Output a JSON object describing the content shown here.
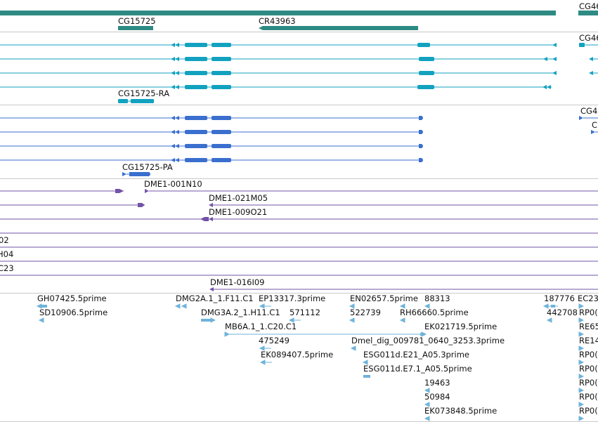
{
  "track_gene_span": {
    "labels": {
      "cg46_top": "CG46",
      "cg15725": "CG15725",
      "cr43963": "CR43963"
    }
  },
  "track_transcripts": {
    "labels": {
      "cg46": "CG46",
      "cg15725_ra": "CG15725-RA"
    }
  },
  "track_proteins": {
    "labels": {
      "cg4_a": "CG4",
      "cg4_b": "C",
      "cg15725_pa": "CG15725-PA"
    }
  },
  "track_bac_clones": {
    "labels": {
      "dme1_001n10": "DME1-001N10",
      "dme1_021m05": "DME1-021M05",
      "dme1_009o21": "DME1-009O21",
      "cut_02": "02",
      "cut_h04": "H04",
      "cut_c23": "C23",
      "dme1_016i09": "DME1-016I09"
    }
  },
  "track_ests": {
    "labels": {
      "gh07425": "GH07425.5prime",
      "sd10906": "SD10906.5prime",
      "dmg2a": "DMG2A.1_1.F11.C1",
      "ep13317": "EP13317.3prime",
      "en02657": "EN02657.5prime",
      "e88313": "88313",
      "e187776": "187776",
      "ec23": "EC23",
      "dmg3a": "DMG3A.2_1.H11.C1",
      "e571112": "571112",
      "e522739": "522739",
      "rh66660": "RH66660.5prime",
      "e442708": "442708",
      "rp0_1": "RP0(",
      "mb6a": "MB6A.1_1.C20.C1",
      "ek021719": "EK021719.5prime",
      "re65": "RE65",
      "e475249": "475249",
      "dmel_dig": "Dmel_dig_009781_0640_3253.3prime",
      "re14": "RE14",
      "ek089407": "EK089407.5prime",
      "esg011d_e21": "ESG011d.E21_A05.3prime",
      "rp0_2": "RP0(",
      "esg011d_e7": "ESG011d.E7.1_A05.5prime",
      "rp0_3": "RP0(",
      "e19463": "19463",
      "rp0_4": "RP0(",
      "e50984": "50984",
      "rp0_5": "RP0(",
      "ek073848": "EK073848.5prime",
      "rp0_6": "RP0("
    }
  },
  "colors": {
    "gene": "#2e8b84",
    "transcript": "#12a2c0",
    "protein": "#3a6fcf",
    "clone": "#7253a6",
    "est": "#6fb3da",
    "separator": "#c9c9c9"
  }
}
